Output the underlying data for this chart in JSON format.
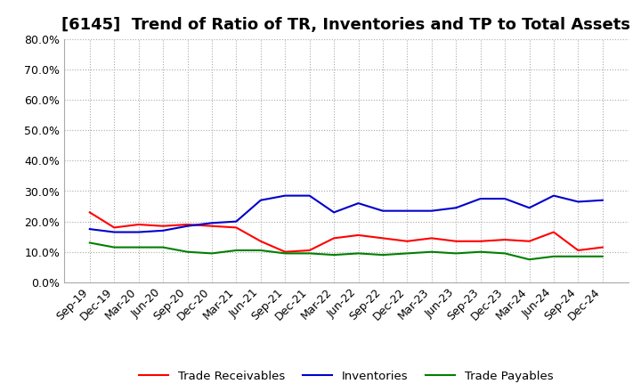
{
  "title": "[6145]  Trend of Ratio of TR, Inventories and TP to Total Assets",
  "ylim": [
    0.0,
    0.8
  ],
  "yticks": [
    0.0,
    0.1,
    0.2,
    0.3,
    0.4,
    0.5,
    0.6,
    0.7,
    0.8
  ],
  "x_labels": [
    "Sep-19",
    "Dec-19",
    "Mar-20",
    "Jun-20",
    "Sep-20",
    "Dec-20",
    "Mar-21",
    "Jun-21",
    "Sep-21",
    "Dec-21",
    "Mar-22",
    "Jun-22",
    "Sep-22",
    "Dec-22",
    "Mar-23",
    "Jun-23",
    "Sep-23",
    "Dec-23",
    "Mar-24",
    "Jun-24",
    "Sep-24",
    "Dec-24"
  ],
  "trade_receivables": [
    0.23,
    0.18,
    0.19,
    0.185,
    0.19,
    0.185,
    0.18,
    0.135,
    0.1,
    0.105,
    0.145,
    0.155,
    0.145,
    0.135,
    0.145,
    0.135,
    0.135,
    0.14,
    0.135,
    0.165,
    0.105,
    0.115
  ],
  "inventories": [
    0.175,
    0.165,
    0.165,
    0.17,
    0.185,
    0.195,
    0.2,
    0.27,
    0.285,
    0.285,
    0.23,
    0.26,
    0.235,
    0.235,
    0.235,
    0.245,
    0.275,
    0.275,
    0.245,
    0.285,
    0.265,
    0.27
  ],
  "trade_payables": [
    0.13,
    0.115,
    0.115,
    0.115,
    0.1,
    0.095,
    0.105,
    0.105,
    0.095,
    0.095,
    0.09,
    0.095,
    0.09,
    0.095,
    0.1,
    0.095,
    0.1,
    0.095,
    0.075,
    0.085,
    0.085,
    0.085
  ],
  "line_colors": {
    "trade_receivables": "#FF0000",
    "inventories": "#0000CC",
    "trade_payables": "#008000"
  },
  "legend_labels": [
    "Trade Receivables",
    "Inventories",
    "Trade Payables"
  ],
  "background_color": "#FFFFFF",
  "grid_color": "#AAAAAA",
  "title_fontsize": 13,
  "tick_fontsize": 9
}
